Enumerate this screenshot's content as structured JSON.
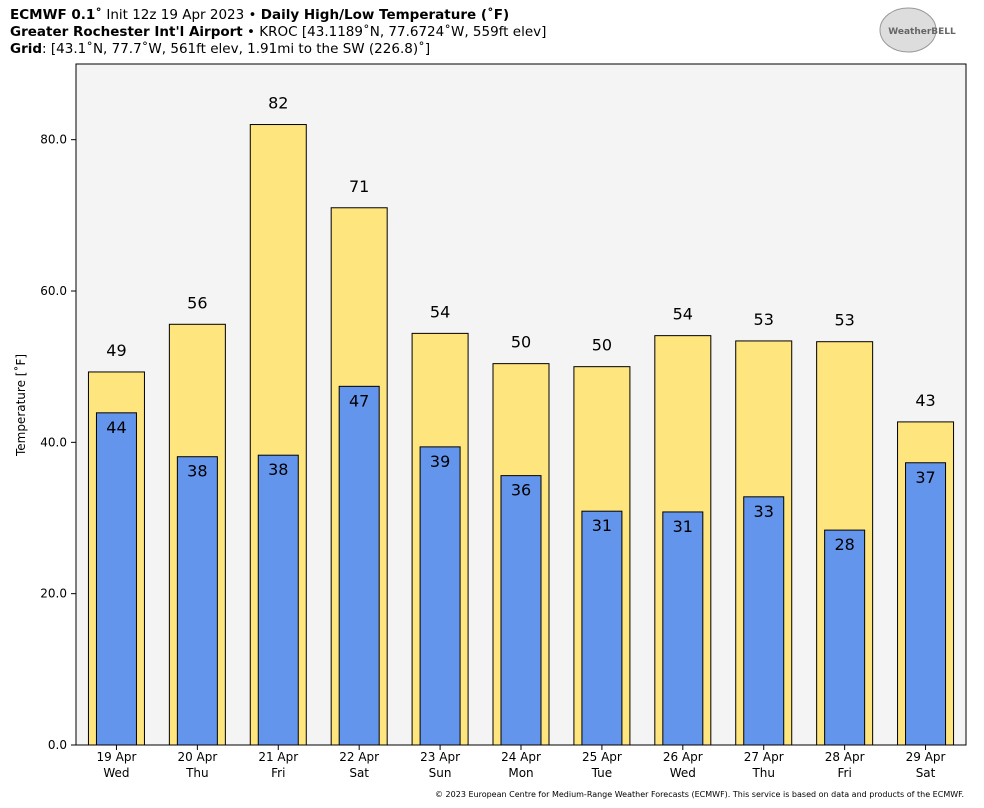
{
  "header": {
    "line1": [
      "ECMWF 0.1˚",
      " Init 12z 19 Apr 2023 • ",
      "Daily High/Low Temperature (˚F)"
    ],
    "line2": [
      "Greater Rochester Int'l Airport",
      " • KROC [43.1189˚N, 77.6724˚W, 559ft elev]"
    ],
    "line3": [
      "Grid",
      ": [43.1˚N, 77.7˚W, 561ft elev, 1.91mi to the SW (226.8)˚]"
    ],
    "logo": "WeatherBELL"
  },
  "footer": "© 2023 European Centre for Medium-Range Weather Forecasts (ECMWF). This service is based on data and products of the ECMWF.",
  "chart_data": {
    "type": "bar",
    "ylabel": "Temperature [˚F]",
    "categories": [
      "19 Apr",
      "20 Apr",
      "21 Apr",
      "22 Apr",
      "23 Apr",
      "24 Apr",
      "25 Apr",
      "26 Apr",
      "27 Apr",
      "28 Apr",
      "29 Apr"
    ],
    "day_names": [
      "Wed",
      "Thu",
      "Fri",
      "Sat",
      "Sun",
      "Mon",
      "Tue",
      "Wed",
      "Thu",
      "Fri",
      "Sat"
    ],
    "series": [
      {
        "color": "#fee57e",
        "values": [
          49.3,
          55.6,
          82.0,
          71.0,
          54.4,
          50.4,
          50.0,
          54.1,
          53.4,
          53.3,
          42.7
        ],
        "value_labels": [
          "49",
          "56",
          "82",
          "71",
          "54",
          "50",
          "50",
          "54",
          "53",
          "53",
          "43"
        ]
      },
      {
        "color": "#6495ed",
        "values": [
          43.9,
          38.1,
          38.3,
          47.4,
          39.4,
          35.6,
          30.9,
          30.8,
          32.8,
          28.4,
          37.3
        ],
        "value_labels": [
          "44",
          "38",
          "38",
          "47",
          "39",
          "36",
          "31",
          "31",
          "33",
          "28",
          "37"
        ]
      }
    ],
    "ylim": [
      0,
      90
    ],
    "yticks": [
      {
        "value": 0,
        "label": "0.0"
      },
      {
        "value": 20,
        "label": "20.0"
      },
      {
        "value": 40,
        "label": "40.0"
      },
      {
        "value": 60,
        "label": "60.0"
      },
      {
        "value": 80,
        "label": "80.0"
      }
    ]
  }
}
